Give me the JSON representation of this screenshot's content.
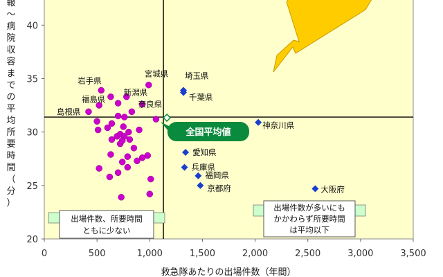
{
  "chart_data": {
    "type": "scatter",
    "xlabel": "救急隊あたりの出場件数（年間）",
    "ylabel": "報～病院収容までの平均所要時間（分）",
    "xlim": [
      0,
      3500
    ],
    "ylim": [
      20,
      43
    ],
    "xticks": [
      0,
      500,
      1000,
      1500,
      2000,
      2500,
      3000,
      3500
    ],
    "xtick_labels": [
      "0",
      "500",
      "1,000",
      "1,500",
      "2,000",
      "2,500",
      "3,000",
      "3,500"
    ],
    "yticks": [
      20,
      25,
      30,
      35,
      40
    ],
    "ytick_labels": [
      "20",
      "25",
      "30",
      "35",
      "40"
    ],
    "colors": {
      "prefecture": "#cc00cc",
      "urban": "#1a3fcc",
      "panel": "#ffffcc",
      "arrow": "#ffcc00",
      "badge": "#0a8a3c",
      "callout": "#ccffcc"
    },
    "reference": {
      "x": 1130,
      "y": 31.4,
      "label": "全国平均値"
    },
    "series": [
      {
        "name": "",
        "marker": "circle",
        "points": [
          {
            "x": 540,
            "y": 33.9,
            "label": "岩手県"
          },
          {
            "x": 990,
            "y": 34.4,
            "label": "宮城県"
          },
          {
            "x": 780,
            "y": 33.3,
            "label": "新潟県"
          },
          {
            "x": 630,
            "y": 33.3,
            "label": "福島県"
          },
          {
            "x": 930,
            "y": 32.6,
            "label": "奈良県"
          },
          {
            "x": 420,
            "y": 31.9,
            "label": "島根県"
          },
          {
            "x": 520,
            "y": 32.5,
            "label": ""
          },
          {
            "x": 700,
            "y": 32.7,
            "label": ""
          },
          {
            "x": 830,
            "y": 31.9,
            "label": ""
          },
          {
            "x": 1060,
            "y": 31.2,
            "label": ""
          },
          {
            "x": 700,
            "y": 31.5,
            "label": ""
          },
          {
            "x": 760,
            "y": 31.4,
            "label": ""
          },
          {
            "x": 500,
            "y": 31.0,
            "label": ""
          },
          {
            "x": 640,
            "y": 30.8,
            "label": ""
          },
          {
            "x": 510,
            "y": 30.2,
            "label": ""
          },
          {
            "x": 750,
            "y": 30.5,
            "label": ""
          },
          {
            "x": 600,
            "y": 30.4,
            "label": ""
          },
          {
            "x": 900,
            "y": 30.2,
            "label": ""
          },
          {
            "x": 800,
            "y": 30.0,
            "label": ""
          },
          {
            "x": 690,
            "y": 29.6,
            "label": ""
          },
          {
            "x": 720,
            "y": 29.8,
            "label": ""
          },
          {
            "x": 760,
            "y": 29.6,
            "label": ""
          },
          {
            "x": 640,
            "y": 29.3,
            "label": ""
          },
          {
            "x": 810,
            "y": 29.3,
            "label": ""
          },
          {
            "x": 740,
            "y": 29.2,
            "label": ""
          },
          {
            "x": 720,
            "y": 28.9,
            "label": ""
          },
          {
            "x": 850,
            "y": 28.5,
            "label": ""
          },
          {
            "x": 980,
            "y": 27.8,
            "label": ""
          },
          {
            "x": 630,
            "y": 27.9,
            "label": ""
          },
          {
            "x": 790,
            "y": 27.7,
            "label": ""
          },
          {
            "x": 930,
            "y": 27.6,
            "label": ""
          },
          {
            "x": 880,
            "y": 27.3,
            "label": ""
          },
          {
            "x": 740,
            "y": 27.2,
            "label": ""
          },
          {
            "x": 790,
            "y": 26.7,
            "label": ""
          },
          {
            "x": 520,
            "y": 26.6,
            "label": ""
          },
          {
            "x": 700,
            "y": 26.2,
            "label": ""
          },
          {
            "x": 620,
            "y": 25.8,
            "label": ""
          },
          {
            "x": 1010,
            "y": 25.6,
            "label": ""
          },
          {
            "x": 730,
            "y": 23.9,
            "label": ""
          },
          {
            "x": 1000,
            "y": 24.2,
            "label": ""
          }
        ]
      },
      {
        "name": "",
        "marker": "diamond",
        "points": [
          {
            "x": 1320,
            "y": 33.9,
            "label": "埼玉県"
          },
          {
            "x": 1320,
            "y": 33.7,
            "label": "千葉県"
          },
          {
            "x": 2030,
            "y": 30.9,
            "label": "神奈川県"
          },
          {
            "x": 1340,
            "y": 28.1,
            "label": "愛知県"
          },
          {
            "x": 1330,
            "y": 26.7,
            "label": "兵庫県"
          },
          {
            "x": 1460,
            "y": 25.9,
            "label": "福岡県"
          },
          {
            "x": 1480,
            "y": 25.0,
            "label": "京都府"
          },
          {
            "x": 2570,
            "y": 24.7,
            "label": "大阪府"
          }
        ]
      }
    ],
    "annotations": [
      {
        "lines": [
          "出場件数、所要時間",
          "ともに少ない"
        ]
      },
      {
        "lines": [
          "出場件数が多いにも",
          "かかわらず所要時間",
          "は平均以下"
        ]
      }
    ]
  }
}
